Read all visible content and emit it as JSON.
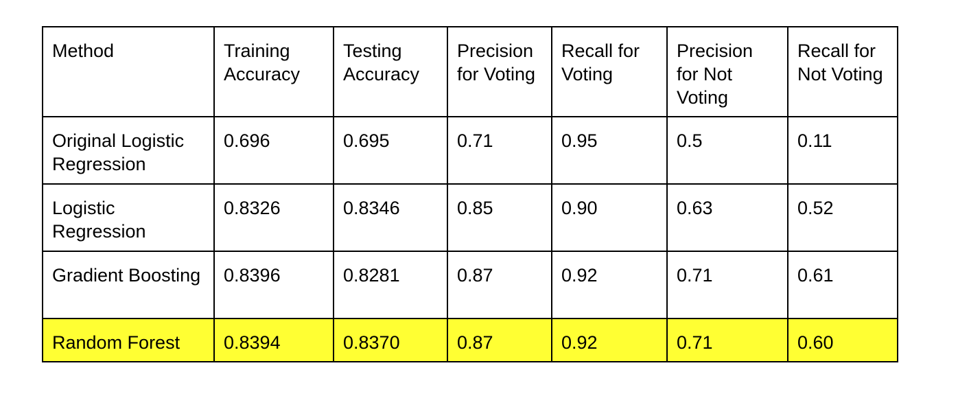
{
  "table": {
    "headers": [
      "Method",
      "Training Accuracy",
      "Testing Accuracy",
      "Precision for Voting",
      "Recall for Voting",
      "Precision for Not Voting",
      "Recall for Not Voting"
    ],
    "rows": [
      [
        "Original Logistic Regression",
        "0.696",
        "0.695",
        "0.71",
        "0.95",
        "0.5",
        "0.11"
      ],
      [
        "Logistic Regression",
        "0.8326",
        "0.8346",
        "0.85",
        "0.90",
        "0.63",
        "0.52"
      ],
      [
        "Gradient Boosting",
        "0.8396",
        "0.8281",
        "0.87",
        "0.92",
        "0.71",
        "0.61"
      ],
      [
        "Random Forest",
        "0.8394",
        "0.8370",
        "0.87",
        "0.92",
        "0.71",
        "0.60"
      ]
    ],
    "highlight_color": "#ffff33"
  }
}
